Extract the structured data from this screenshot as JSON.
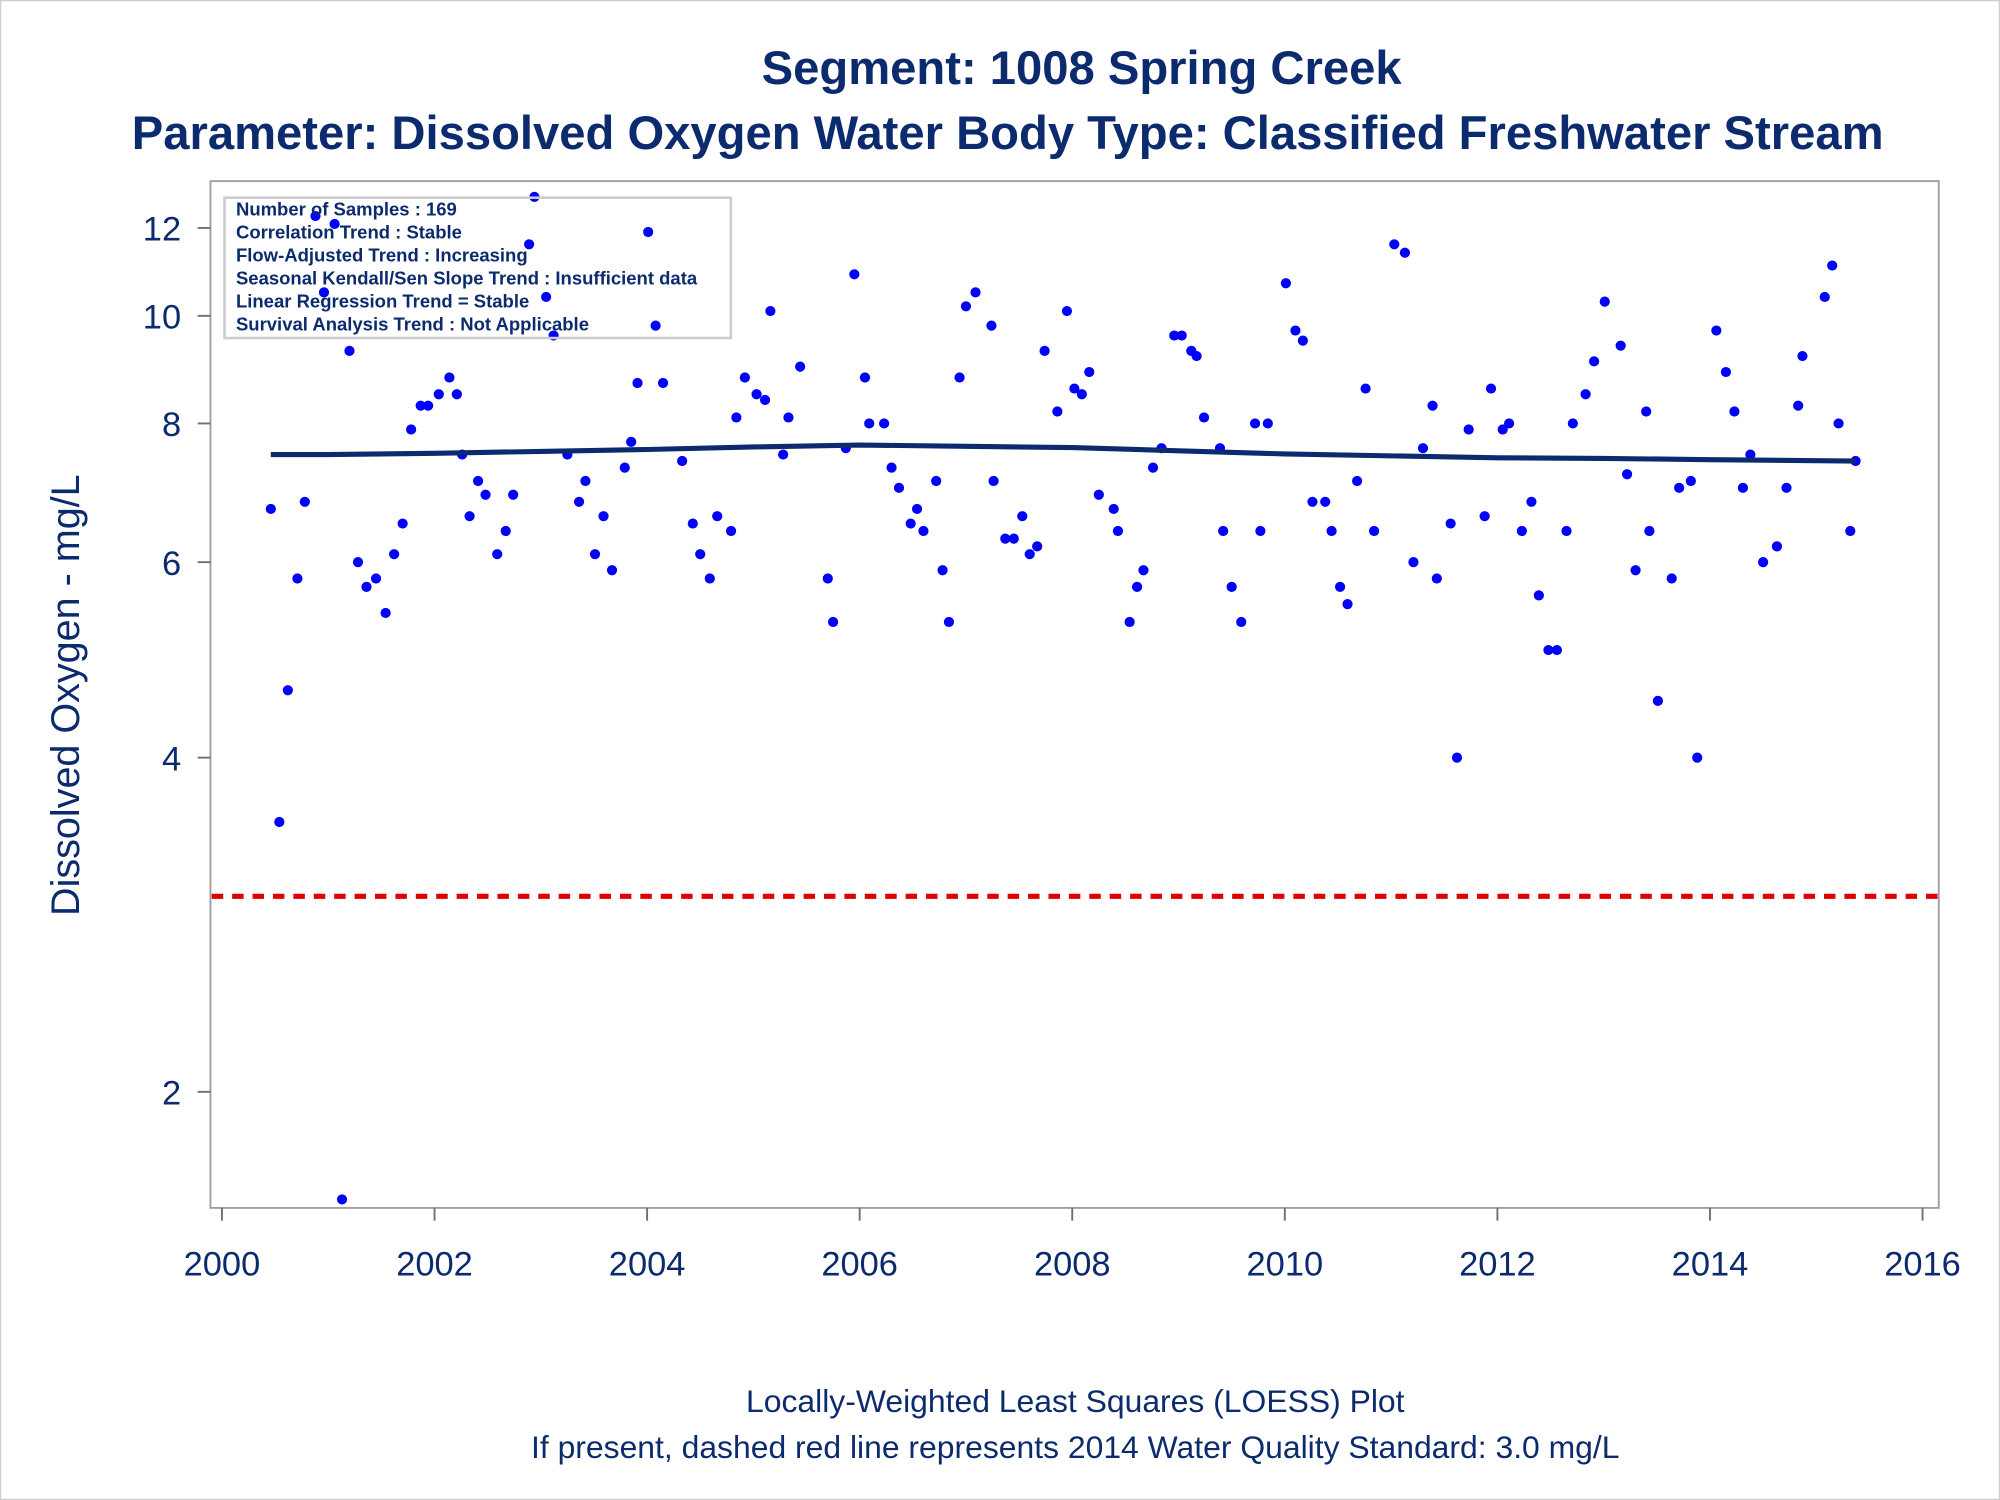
{
  "chart_data": {
    "type": "scatter",
    "title": "Segment: 1008  Spring Creek",
    "subtitle": "Parameter: Dissolved Oxygen   Water Body Type: Classified Freshwater Stream",
    "xlabel": "",
    "ylabel": "Dissolved Oxygen - mg/L",
    "xlim": [
      2000,
      2016
    ],
    "ylim": [
      1.55,
      13.0
    ],
    "yscale": "log",
    "xticks": [
      "2000",
      "2002",
      "2004",
      "2006",
      "2008",
      "2010",
      "2012",
      "2014",
      "2016"
    ],
    "yticks": [
      "2",
      "4",
      "6",
      "8",
      "10",
      "12"
    ],
    "grid": false,
    "colors": {
      "points": "#0000ff",
      "loess": "#0c2b6e",
      "standard": "#e00000",
      "text": "#0c2b6e"
    },
    "stats_box": {
      "placement": "top-left",
      "lines": [
        "Number of Samples : 169",
        "Correlation Trend : Stable",
        "Flow-Adjusted Trend : Increasing",
        "Seasonal Kendall/Sen Slope Trend : Insufficient data",
        "Linear Regression Trend = Stable",
        "Survival Analysis Trend : Not Applicable"
      ]
    },
    "standard_line": {
      "value": 3.0
    },
    "footnotes": [
      "Locally-Weighted Least Squares (LOESS) Plot",
      "If present, dashed red line represents 2014 Water Quality Standard: 3.0 mg/L"
    ],
    "loess": [
      [
        2000.46,
        7.5
      ],
      [
        2001,
        7.5
      ],
      [
        2002,
        7.52
      ],
      [
        2003,
        7.55
      ],
      [
        2004,
        7.58
      ],
      [
        2005,
        7.62
      ],
      [
        2006,
        7.65
      ],
      [
        2007,
        7.63
      ],
      [
        2008,
        7.61
      ],
      [
        2009,
        7.56
      ],
      [
        2010,
        7.51
      ],
      [
        2011,
        7.48
      ],
      [
        2012,
        7.45
      ],
      [
        2013,
        7.44
      ],
      [
        2014,
        7.42
      ],
      [
        2015.37,
        7.4
      ]
    ],
    "points": [
      [
        2000.46,
        6.7
      ],
      [
        2000.54,
        3.5
      ],
      [
        2000.62,
        4.6
      ],
      [
        2000.71,
        5.8
      ],
      [
        2000.78,
        6.8
      ],
      [
        2000.88,
        12.3
      ],
      [
        2000.96,
        10.5
      ],
      [
        2001.06,
        12.1
      ],
      [
        2001.13,
        1.6
      ],
      [
        2001.2,
        9.3
      ],
      [
        2001.28,
        6.0
      ],
      [
        2001.36,
        5.7
      ],
      [
        2001.45,
        5.8
      ],
      [
        2001.54,
        5.4
      ],
      [
        2001.62,
        6.1
      ],
      [
        2001.7,
        6.5
      ],
      [
        2001.78,
        7.9
      ],
      [
        2001.87,
        8.3
      ],
      [
        2001.94,
        8.3
      ],
      [
        2002.04,
        8.5
      ],
      [
        2002.14,
        8.8
      ],
      [
        2002.21,
        8.5
      ],
      [
        2002.26,
        7.5
      ],
      [
        2002.33,
        6.6
      ],
      [
        2002.41,
        7.1
      ],
      [
        2002.48,
        6.9
      ],
      [
        2002.59,
        6.1
      ],
      [
        2002.67,
        6.4
      ],
      [
        2002.74,
        6.9
      ],
      [
        2002.89,
        11.6
      ],
      [
        2002.94,
        12.8
      ],
      [
        2003.05,
        10.4
      ],
      [
        2003.12,
        9.6
      ],
      [
        2003.25,
        7.5
      ],
      [
        2003.36,
        6.8
      ],
      [
        2003.42,
        7.1
      ],
      [
        2003.51,
        6.1
      ],
      [
        2003.59,
        6.6
      ],
      [
        2003.67,
        5.9
      ],
      [
        2003.79,
        7.3
      ],
      [
        2003.85,
        7.7
      ],
      [
        2003.91,
        8.7
      ],
      [
        2004.01,
        11.9
      ],
      [
        2004.08,
        9.8
      ],
      [
        2004.15,
        8.7
      ],
      [
        2004.33,
        7.4
      ],
      [
        2004.43,
        6.5
      ],
      [
        2004.5,
        6.1
      ],
      [
        2004.59,
        5.8
      ],
      [
        2004.66,
        6.6
      ],
      [
        2004.79,
        6.4
      ],
      [
        2004.84,
        8.1
      ],
      [
        2004.92,
        8.8
      ],
      [
        2005.03,
        8.5
      ],
      [
        2005.11,
        8.4
      ],
      [
        2005.16,
        10.1
      ],
      [
        2005.28,
        7.5
      ],
      [
        2005.33,
        8.1
      ],
      [
        2005.44,
        9.0
      ],
      [
        2005.7,
        5.8
      ],
      [
        2005.75,
        5.3
      ],
      [
        2005.87,
        7.6
      ],
      [
        2005.95,
        10.9
      ],
      [
        2006.05,
        8.8
      ],
      [
        2006.09,
        8.0
      ],
      [
        2006.23,
        8.0
      ],
      [
        2006.3,
        7.3
      ],
      [
        2006.37,
        7.0
      ],
      [
        2006.48,
        6.5
      ],
      [
        2006.54,
        6.7
      ],
      [
        2006.6,
        6.4
      ],
      [
        2006.72,
        7.1
      ],
      [
        2006.78,
        5.9
      ],
      [
        2006.84,
        5.3
      ],
      [
        2006.94,
        8.8
      ],
      [
        2007.0,
        10.2
      ],
      [
        2007.09,
        10.5
      ],
      [
        2007.24,
        9.8
      ],
      [
        2007.26,
        7.1
      ],
      [
        2007.37,
        6.3
      ],
      [
        2007.45,
        6.3
      ],
      [
        2007.53,
        6.6
      ],
      [
        2007.6,
        6.1
      ],
      [
        2007.67,
        6.2
      ],
      [
        2007.74,
        9.3
      ],
      [
        2007.86,
        8.2
      ],
      [
        2007.95,
        10.1
      ],
      [
        2008.02,
        8.6
      ],
      [
        2008.09,
        8.5
      ],
      [
        2008.16,
        8.9
      ],
      [
        2008.25,
        6.9
      ],
      [
        2008.39,
        6.7
      ],
      [
        2008.43,
        6.4
      ],
      [
        2008.54,
        5.3
      ],
      [
        2008.61,
        5.7
      ],
      [
        2008.67,
        5.9
      ],
      [
        2008.76,
        7.3
      ],
      [
        2008.84,
        7.6
      ],
      [
        2008.96,
        9.6
      ],
      [
        2009.03,
        9.6
      ],
      [
        2009.12,
        9.3
      ],
      [
        2009.17,
        9.2
      ],
      [
        2009.24,
        8.1
      ],
      [
        2009.39,
        7.6
      ],
      [
        2009.42,
        6.4
      ],
      [
        2009.5,
        5.7
      ],
      [
        2009.59,
        5.3
      ],
      [
        2009.72,
        8.0
      ],
      [
        2009.77,
        6.4
      ],
      [
        2009.84,
        8.0
      ],
      [
        2010.01,
        10.7
      ],
      [
        2010.1,
        9.7
      ],
      [
        2010.17,
        9.5
      ],
      [
        2010.26,
        6.8
      ],
      [
        2010.38,
        6.8
      ],
      [
        2010.44,
        6.4
      ],
      [
        2010.52,
        5.7
      ],
      [
        2010.59,
        5.5
      ],
      [
        2010.68,
        7.1
      ],
      [
        2010.76,
        8.6
      ],
      [
        2010.84,
        6.4
      ],
      [
        2011.03,
        11.6
      ],
      [
        2011.13,
        11.4
      ],
      [
        2011.21,
        6.0
      ],
      [
        2011.3,
        7.6
      ],
      [
        2011.39,
        8.3
      ],
      [
        2011.43,
        5.8
      ],
      [
        2011.56,
        6.5
      ],
      [
        2011.62,
        4.0
      ],
      [
        2011.73,
        7.9
      ],
      [
        2011.88,
        6.6
      ],
      [
        2011.94,
        8.6
      ],
      [
        2012.05,
        7.9
      ],
      [
        2012.11,
        8.0
      ],
      [
        2012.23,
        6.4
      ],
      [
        2012.32,
        6.8
      ],
      [
        2012.39,
        5.6
      ],
      [
        2012.48,
        5.0
      ],
      [
        2012.56,
        5.0
      ],
      [
        2012.65,
        6.4
      ],
      [
        2012.71,
        8.0
      ],
      [
        2012.83,
        8.5
      ],
      [
        2012.91,
        9.1
      ],
      [
        2013.01,
        10.3
      ],
      [
        2013.16,
        9.4
      ],
      [
        2013.22,
        7.2
      ],
      [
        2013.3,
        5.9
      ],
      [
        2013.4,
        8.2
      ],
      [
        2013.43,
        6.4
      ],
      [
        2013.51,
        4.5
      ],
      [
        2013.64,
        5.8
      ],
      [
        2013.71,
        7.0
      ],
      [
        2013.82,
        7.1
      ],
      [
        2013.88,
        4.0
      ],
      [
        2014.06,
        9.7
      ],
      [
        2014.15,
        8.9
      ],
      [
        2014.23,
        8.2
      ],
      [
        2014.31,
        7.0
      ],
      [
        2014.38,
        7.5
      ],
      [
        2014.5,
        6.0
      ],
      [
        2014.63,
        6.2
      ],
      [
        2014.72,
        7.0
      ],
      [
        2014.83,
        8.3
      ],
      [
        2014.87,
        9.2
      ],
      [
        2015.08,
        10.4
      ],
      [
        2015.15,
        11.1
      ],
      [
        2015.21,
        8.0
      ],
      [
        2015.32,
        6.4
      ],
      [
        2015.37,
        7.4
      ]
    ]
  }
}
